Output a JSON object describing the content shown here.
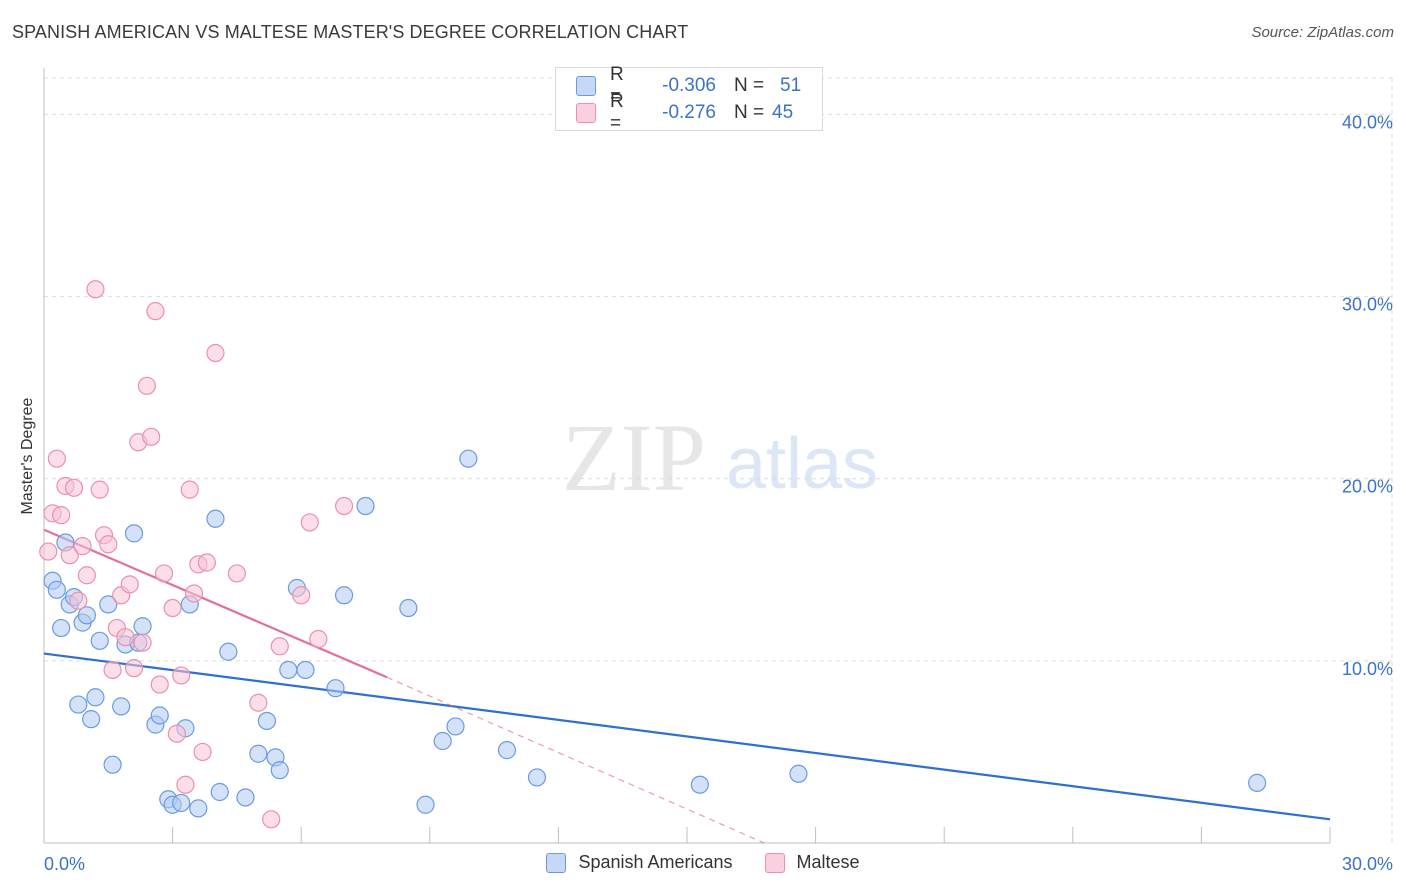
{
  "header": {
    "title": "SPANISH AMERICAN VS MALTESE MASTER'S DEGREE CORRELATION CHART",
    "source": "Source: ZipAtlas.com"
  },
  "watermark": {
    "zip": "ZIP",
    "atlas": "atlas"
  },
  "colors": {
    "blue": "#6a9be0",
    "blue_fill": "#aecbf2",
    "blue_line": "#2f6fcf",
    "pink": "#ec8faf",
    "pink_fill": "#f7c3d4",
    "pink_line": "#e2709a",
    "grid": "#dcdcdc",
    "tick_text": "#3b72c5"
  },
  "legend_top": {
    "rows": [
      {
        "r_label": "R =",
        "r_value": "-0.306",
        "n_label": "N =",
        "n_value": "51"
      },
      {
        "r_label": "R =",
        "r_value": "-0.276",
        "n_label": "N =",
        "n_value": "45"
      }
    ]
  },
  "legend_bottom": {
    "items": [
      "Spanish Americans",
      "Maltese"
    ]
  },
  "chart_data": {
    "type": "scatter",
    "title": "SPANISH AMERICAN VS MALTESE MASTER'S DEGREE CORRELATION CHART",
    "xlabel": "",
    "ylabel": "Master's Degree",
    "xlim": [
      0,
      30
    ],
    "ylim": [
      0,
      42
    ],
    "x_tick_labels": [
      "0.0%",
      "30.0%"
    ],
    "y_ticks": [
      10,
      20,
      30,
      40
    ],
    "y_tick_labels": [
      "10.0%",
      "20.0%",
      "30.0%",
      "40.0%"
    ],
    "grid": true,
    "series": [
      {
        "name": "Spanish Americans",
        "stats": {
          "R": -0.306,
          "N": 51
        },
        "trend": {
          "x": [
            0,
            30
          ],
          "y": [
            10.4,
            1.3
          ]
        },
        "points": [
          [
            0.2,
            14.4
          ],
          [
            0.3,
            13.9
          ],
          [
            0.4,
            11.8
          ],
          [
            0.5,
            16.5
          ],
          [
            0.6,
            13.1
          ],
          [
            0.7,
            13.5
          ],
          [
            0.8,
            7.6
          ],
          [
            0.9,
            12.1
          ],
          [
            1.0,
            12.5
          ],
          [
            1.1,
            6.8
          ],
          [
            1.2,
            8.0
          ],
          [
            1.3,
            11.1
          ],
          [
            1.5,
            13.1
          ],
          [
            1.6,
            4.3
          ],
          [
            1.8,
            7.5
          ],
          [
            1.9,
            10.9
          ],
          [
            2.1,
            17.0
          ],
          [
            2.2,
            11.0
          ],
          [
            2.3,
            11.9
          ],
          [
            2.6,
            6.5
          ],
          [
            2.7,
            7.0
          ],
          [
            2.9,
            2.4
          ],
          [
            3.0,
            2.1
          ],
          [
            3.2,
            2.2
          ],
          [
            3.3,
            6.3
          ],
          [
            3.4,
            13.1
          ],
          [
            3.6,
            1.9
          ],
          [
            4.0,
            17.8
          ],
          [
            4.1,
            2.8
          ],
          [
            4.3,
            10.5
          ],
          [
            4.7,
            2.5
          ],
          [
            5.0,
            4.9
          ],
          [
            5.2,
            6.7
          ],
          [
            5.4,
            4.7
          ],
          [
            5.5,
            4.0
          ],
          [
            5.7,
            9.5
          ],
          [
            5.9,
            14.0
          ],
          [
            6.1,
            9.5
          ],
          [
            6.8,
            8.5
          ],
          [
            7.0,
            13.6
          ],
          [
            7.5,
            18.5
          ],
          [
            8.5,
            12.9
          ],
          [
            8.9,
            2.1
          ],
          [
            9.3,
            5.6
          ],
          [
            9.6,
            6.4
          ],
          [
            9.9,
            21.1
          ],
          [
            10.8,
            5.1
          ],
          [
            11.5,
            3.6
          ],
          [
            15.3,
            3.2
          ],
          [
            17.6,
            3.8
          ],
          [
            28.3,
            3.3
          ]
        ]
      },
      {
        "name": "Maltese",
        "stats": {
          "R": -0.276,
          "N": 45
        },
        "trend": {
          "x": [
            0,
            8.0
          ],
          "y": [
            17.2,
            9.1
          ]
        },
        "trend_extension": {
          "x": [
            8.0,
            16.8
          ],
          "y": [
            9.1,
            0.0
          ]
        },
        "points": [
          [
            0.1,
            16.0
          ],
          [
            0.2,
            18.1
          ],
          [
            0.3,
            21.1
          ],
          [
            0.4,
            18.0
          ],
          [
            0.5,
            19.6
          ],
          [
            0.6,
            15.8
          ],
          [
            0.7,
            19.5
          ],
          [
            0.8,
            13.3
          ],
          [
            0.9,
            16.3
          ],
          [
            1.0,
            14.7
          ],
          [
            1.2,
            30.4
          ],
          [
            1.3,
            19.4
          ],
          [
            1.4,
            16.9
          ],
          [
            1.5,
            16.4
          ],
          [
            1.6,
            9.5
          ],
          [
            1.7,
            11.8
          ],
          [
            1.8,
            13.6
          ],
          [
            1.9,
            11.3
          ],
          [
            2.0,
            14.2
          ],
          [
            2.1,
            9.6
          ],
          [
            2.2,
            22.0
          ],
          [
            2.3,
            11.0
          ],
          [
            2.4,
            25.1
          ],
          [
            2.5,
            22.3
          ],
          [
            2.6,
            29.2
          ],
          [
            2.7,
            8.7
          ],
          [
            2.8,
            14.8
          ],
          [
            3.0,
            12.9
          ],
          [
            3.1,
            6.0
          ],
          [
            3.2,
            9.2
          ],
          [
            3.3,
            3.2
          ],
          [
            3.4,
            19.4
          ],
          [
            3.5,
            13.7
          ],
          [
            3.6,
            15.3
          ],
          [
            3.7,
            5.0
          ],
          [
            3.8,
            15.4
          ],
          [
            4.0,
            26.9
          ],
          [
            4.5,
            14.8
          ],
          [
            5.0,
            7.7
          ],
          [
            5.3,
            1.3
          ],
          [
            5.5,
            10.8
          ],
          [
            6.0,
            13.6
          ],
          [
            6.2,
            17.6
          ],
          [
            6.4,
            11.2
          ],
          [
            7.0,
            18.5
          ]
        ]
      }
    ]
  }
}
